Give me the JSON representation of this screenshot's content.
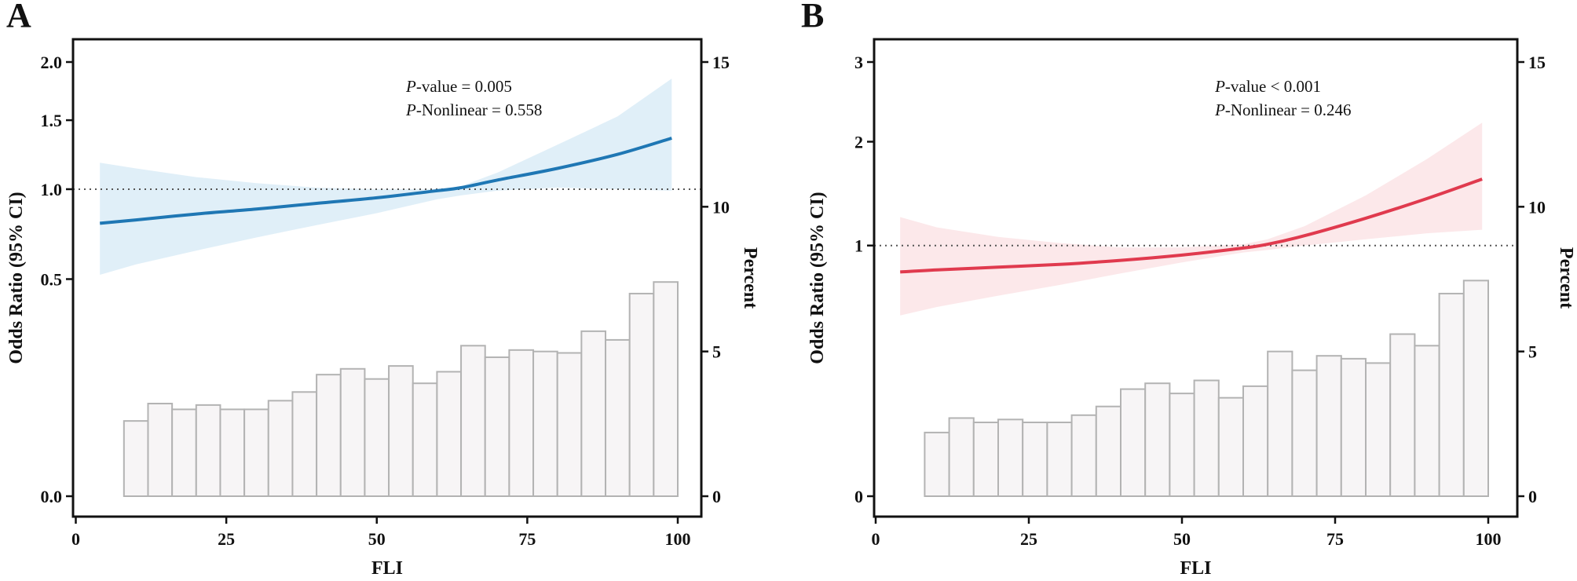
{
  "chart_data": [
    {
      "panel": "A",
      "type": "line",
      "xlabel": "FLI",
      "ylabel": "Odds Ratio (95% CI)",
      "y2label": "Percent",
      "xlim": [
        0,
        100
      ],
      "ylim": [
        0.0,
        2.0
      ],
      "y2lim": [
        0,
        15
      ],
      "xticks": [
        0,
        25,
        50,
        75,
        100
      ],
      "yticks": [
        0.0,
        0.5,
        1.0,
        1.5,
        2.0
      ],
      "ytick_labels": [
        "0.0",
        "0.5",
        "1.0",
        "1.5",
        "2.0"
      ],
      "y2ticks": [
        0,
        5,
        10,
        15
      ],
      "y_transform": "sqrt",
      "reference_line": 1.0,
      "annotation_pvalue": {
        "prefix": "P",
        "suffix": "-value = 0.005"
      },
      "annotation_nonlinear": {
        "prefix": "P",
        "suffix": "-Nonlinear = 0.558"
      },
      "colors": {
        "line": "#1f77b4",
        "band": "#d6e9f5",
        "bar_fill": "#f7f5f6",
        "bar_stroke": "#b3b3b3"
      },
      "line": {
        "x": [
          4,
          10,
          20,
          30,
          40,
          50,
          60,
          64,
          70,
          80,
          90,
          99
        ],
        "y": [
          0.79,
          0.81,
          0.845,
          0.875,
          0.91,
          0.945,
          0.99,
          1.01,
          1.06,
          1.14,
          1.24,
          1.36
        ],
        "lo": [
          0.52,
          0.57,
          0.64,
          0.71,
          0.78,
          0.85,
          0.935,
          0.96,
          0.99,
          1.01,
          1.0,
          0.99
        ],
        "hi": [
          1.18,
          1.14,
          1.08,
          1.04,
          1.01,
          1.0,
          1.0,
          1.02,
          1.11,
          1.31,
          1.53,
          1.85
        ]
      },
      "histogram": {
        "bin_edges": [
          8,
          12,
          16,
          20,
          24,
          28,
          32,
          36,
          40,
          44,
          48,
          52,
          56,
          60,
          64,
          68,
          72,
          76,
          80,
          84,
          88,
          92,
          96,
          100
        ],
        "percent": [
          2.6,
          3.2,
          3.0,
          3.15,
          3.0,
          3.0,
          3.3,
          3.6,
          4.2,
          4.4,
          4.05,
          4.5,
          3.9,
          4.3,
          5.2,
          4.8,
          5.05,
          5.0,
          4.95,
          5.7,
          5.4,
          7.0,
          7.4
        ]
      }
    },
    {
      "panel": "B",
      "type": "line",
      "xlabel": "FLI",
      "ylabel": "Odds Ratio (95% CI)",
      "y2label": "Percent",
      "xlim": [
        0,
        100
      ],
      "ylim": [
        0,
        3
      ],
      "y2lim": [
        0,
        15
      ],
      "xticks": [
        0,
        25,
        50,
        75,
        100
      ],
      "yticks": [
        0,
        1,
        2,
        3
      ],
      "ytick_labels": [
        "0",
        "1",
        "2",
        "3"
      ],
      "y2ticks": [
        0,
        5,
        10,
        15
      ],
      "y_transform": "sqrt",
      "reference_line": 1.0,
      "annotation_pvalue": {
        "prefix": "P",
        "suffix": "-value < 0.001"
      },
      "annotation_nonlinear": {
        "prefix": "P",
        "suffix": "-Nonlinear = 0.246"
      },
      "colors": {
        "line": "#e03a4e",
        "band": "#fbe0e3",
        "bar_fill": "#f7f5f6",
        "bar_stroke": "#b3b3b3"
      },
      "line": {
        "x": [
          4,
          10,
          20,
          30,
          40,
          50,
          60,
          64,
          70,
          80,
          90,
          99
        ],
        "y": [
          0.8,
          0.815,
          0.835,
          0.855,
          0.885,
          0.925,
          0.98,
          1.01,
          1.08,
          1.23,
          1.41,
          1.6
        ],
        "lo": [
          0.52,
          0.57,
          0.64,
          0.71,
          0.79,
          0.87,
          0.945,
          0.965,
          1.0,
          1.05,
          1.1,
          1.13
        ],
        "hi": [
          1.24,
          1.15,
          1.07,
          1.02,
          0.985,
          0.985,
          1.01,
          1.05,
          1.16,
          1.44,
          1.81,
          2.22
        ]
      },
      "histogram": {
        "bin_edges": [
          8,
          12,
          16,
          20,
          24,
          28,
          32,
          36,
          40,
          44,
          48,
          52,
          56,
          60,
          64,
          68,
          72,
          76,
          80,
          84,
          88,
          92,
          96,
          100
        ],
        "percent": [
          2.2,
          2.7,
          2.55,
          2.65,
          2.55,
          2.55,
          2.8,
          3.1,
          3.7,
          3.9,
          3.55,
          4.0,
          3.4,
          3.8,
          5.0,
          4.35,
          4.85,
          4.75,
          4.6,
          5.6,
          5.2,
          7.0,
          7.45
        ]
      }
    }
  ]
}
